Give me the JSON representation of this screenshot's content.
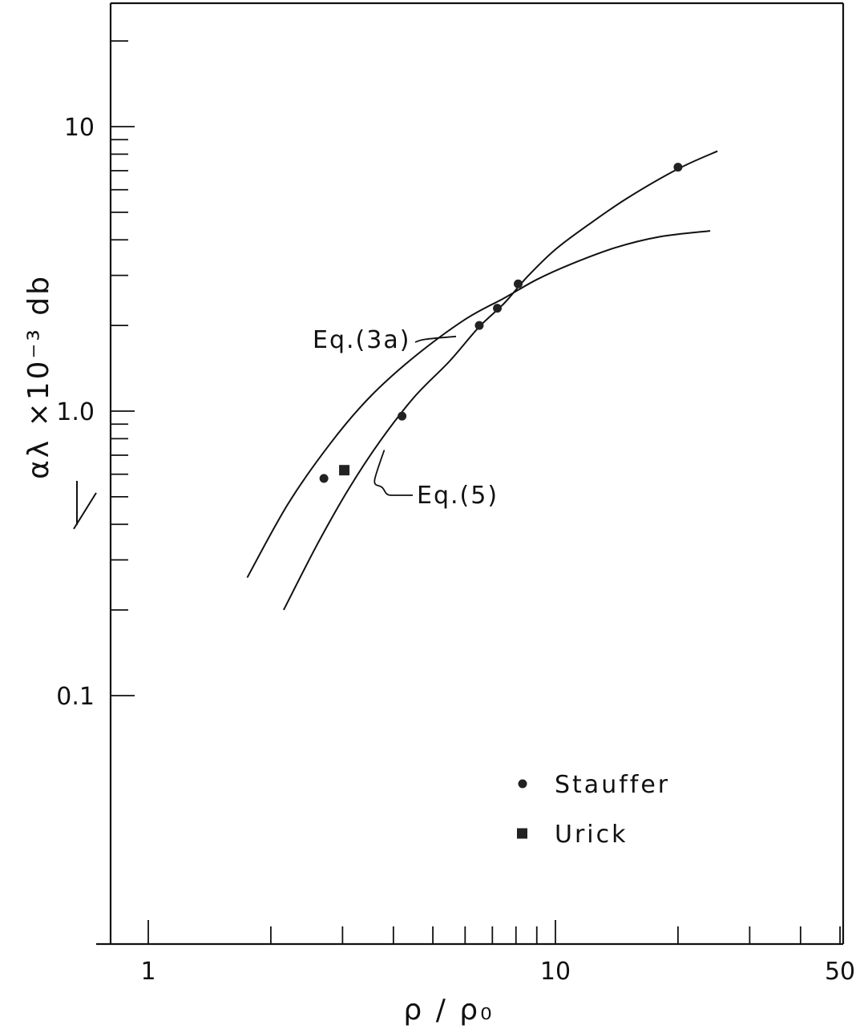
{
  "chart_data": {
    "type": "scatter",
    "title": "",
    "xlabel": "ρ / ρ₀",
    "ylabel": "αλ ×10⁻³ db",
    "x_scale": "log",
    "y_scale": "log",
    "xlim": [
      0.75,
      50
    ],
    "ylim": [
      0.1,
      28
    ],
    "x_ticks": [
      {
        "value": 1,
        "label": "1"
      },
      {
        "value": 10,
        "label": "10"
      },
      {
        "value": 50,
        "label": "50"
      }
    ],
    "y_ticks": [
      {
        "value": 0.1,
        "label": "0.1"
      },
      {
        "value": 1,
        "label": "1.0"
      },
      {
        "value": 10,
        "label": "10"
      }
    ],
    "grid": false,
    "legend_position": "bottom-right",
    "series": [
      {
        "name": "Stauffer",
        "kind": "points",
        "marker": "circle",
        "points": [
          [
            2.7,
            0.58
          ],
          [
            4.2,
            0.96
          ],
          [
            6.5,
            2.0
          ],
          [
            7.2,
            2.3
          ],
          [
            8.1,
            2.8
          ],
          [
            20.0,
            7.2
          ]
        ]
      },
      {
        "name": "Urick",
        "kind": "points",
        "marker": "square",
        "points": [
          [
            3.03,
            0.62
          ]
        ]
      },
      {
        "name": "",
        "kind": "line",
        "points": [
          [
            1.75,
            0.26
          ],
          [
            2.2,
            0.47
          ],
          [
            2.8,
            0.77
          ],
          [
            3.5,
            1.12
          ],
          [
            4.5,
            1.55
          ],
          [
            6.0,
            2.1
          ],
          [
            7.5,
            2.5
          ],
          [
            9.0,
            2.9
          ],
          [
            11.0,
            3.3
          ],
          [
            14.0,
            3.75
          ],
          [
            18.0,
            4.1
          ],
          [
            24.0,
            4.3
          ]
        ]
      },
      {
        "name": "",
        "kind": "line",
        "points": [
          [
            2.15,
            0.2
          ],
          [
            2.6,
            0.34
          ],
          [
            3.1,
            0.53
          ],
          [
            3.7,
            0.78
          ],
          [
            4.5,
            1.12
          ],
          [
            5.5,
            1.5
          ],
          [
            6.5,
            1.98
          ],
          [
            7.5,
            2.4
          ],
          [
            8.5,
            2.95
          ],
          [
            10.0,
            3.7
          ],
          [
            12.0,
            4.5
          ],
          [
            15.0,
            5.6
          ],
          [
            20.0,
            7.1
          ],
          [
            25.0,
            8.2
          ]
        ]
      }
    ],
    "annotations": [
      {
        "text": "Eq.(3a)",
        "target_x": 5.7,
        "target_y": 1.83
      },
      {
        "text": "Eq.(5)",
        "target_x": 3.8,
        "target_y": 0.73
      }
    ]
  }
}
